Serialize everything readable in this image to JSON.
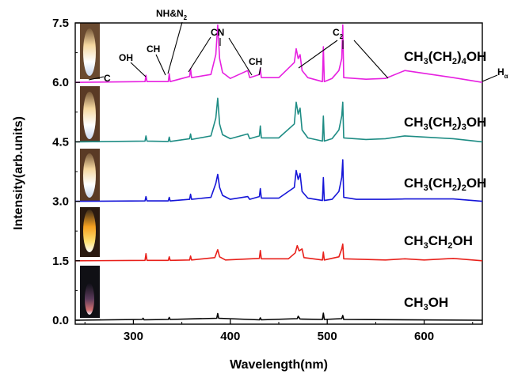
{
  "chart_data": {
    "type": "line",
    "title": "",
    "xlabel": "Wavelength(nm)",
    "ylabel": "Intensity(arb.units)",
    "xlim": [
      240,
      660
    ],
    "ylim": [
      -0.1,
      7.5
    ],
    "x_ticks": [
      "300",
      "400",
      "500",
      "600"
    ],
    "y_ticks": [
      "0.0",
      "1.5",
      "3.0",
      "4.5",
      "6.0",
      "7.5"
    ],
    "series": [
      {
        "name": "CH3OH",
        "label_parts": [
          [
            "CH",
            ""
          ],
          [
            "3",
            "sub"
          ],
          [
            "OH",
            ""
          ]
        ],
        "color": "#000000",
        "offset": 0.0,
        "points": [
          [
            240,
            0.0
          ],
          [
            309,
            0.02
          ],
          [
            310,
            0.05
          ],
          [
            311,
            0.01
          ],
          [
            336,
            0.02
          ],
          [
            337,
            0.07
          ],
          [
            338,
            0.02
          ],
          [
            386,
            0.05
          ],
          [
            387,
            0.17
          ],
          [
            388,
            0.05
          ],
          [
            430,
            0.01
          ],
          [
            431,
            0.06
          ],
          [
            432,
            0.01
          ],
          [
            469,
            0.04
          ],
          [
            470,
            0.1
          ],
          [
            472,
            0.03
          ],
          [
            495,
            0.02
          ],
          [
            496,
            0.18
          ],
          [
            497,
            0.02
          ],
          [
            515,
            0.04
          ],
          [
            516,
            0.12
          ],
          [
            517,
            0.02
          ],
          [
            660,
            0.0
          ]
        ]
      },
      {
        "name": "CH3CH2OH",
        "label_parts": [
          [
            "CH",
            ""
          ],
          [
            "3",
            "sub"
          ],
          [
            "CH",
            ""
          ],
          [
            "2",
            "sub"
          ],
          [
            "OH",
            ""
          ]
        ],
        "color": "#e8201a",
        "offset": 1.5,
        "points": [
          [
            240,
            0.0
          ],
          [
            312,
            0.01
          ],
          [
            313,
            0.18
          ],
          [
            314,
            0.01
          ],
          [
            336,
            0.01
          ],
          [
            337,
            0.1
          ],
          [
            338,
            0.01
          ],
          [
            358,
            0.02
          ],
          [
            359,
            0.12
          ],
          [
            360,
            0.02
          ],
          [
            384,
            0.08
          ],
          [
            387,
            0.28
          ],
          [
            389,
            0.1
          ],
          [
            395,
            0.02
          ],
          [
            430,
            0.06
          ],
          [
            431,
            0.26
          ],
          [
            432,
            0.05
          ],
          [
            460,
            0.05
          ],
          [
            467,
            0.2
          ],
          [
            469,
            0.38
          ],
          [
            471,
            0.25
          ],
          [
            474,
            0.3
          ],
          [
            476,
            0.08
          ],
          [
            495,
            0.02
          ],
          [
            496,
            0.22
          ],
          [
            497,
            0.02
          ],
          [
            512,
            0.1
          ],
          [
            515,
            0.3
          ],
          [
            516,
            0.42
          ],
          [
            517,
            0.05
          ],
          [
            560,
            0.02
          ],
          [
            580,
            0.05
          ],
          [
            600,
            0.02
          ],
          [
            630,
            0.06
          ],
          [
            660,
            0.0
          ]
        ]
      },
      {
        "name": "CH3(CH2)2OH",
        "label_parts": [
          [
            "CH",
            ""
          ],
          [
            "3",
            "sub"
          ],
          [
            "(CH",
            ""
          ],
          [
            "2",
            "sub"
          ],
          [
            ")",
            ""
          ],
          [
            "2",
            "sub"
          ],
          [
            "OH",
            ""
          ]
        ],
        "color": "#1515d8",
        "offset": 3.0,
        "points": [
          [
            240,
            0.0
          ],
          [
            312,
            0.01
          ],
          [
            313,
            0.12
          ],
          [
            314,
            0.01
          ],
          [
            336,
            0.01
          ],
          [
            337,
            0.1
          ],
          [
            338,
            0.01
          ],
          [
            358,
            0.05
          ],
          [
            359,
            0.18
          ],
          [
            360,
            0.05
          ],
          [
            380,
            0.1
          ],
          [
            385,
            0.45
          ],
          [
            387,
            0.68
          ],
          [
            389,
            0.35
          ],
          [
            392,
            0.15
          ],
          [
            400,
            0.05
          ],
          [
            418,
            0.12
          ],
          [
            420,
            0.05
          ],
          [
            430,
            0.12
          ],
          [
            431,
            0.32
          ],
          [
            432,
            0.08
          ],
          [
            450,
            0.08
          ],
          [
            466,
            0.35
          ],
          [
            468,
            0.78
          ],
          [
            470,
            0.55
          ],
          [
            472,
            0.7
          ],
          [
            474,
            0.25
          ],
          [
            480,
            0.08
          ],
          [
            495,
            0.02
          ],
          [
            496,
            0.6
          ],
          [
            497,
            0.02
          ],
          [
            505,
            0.05
          ],
          [
            512,
            0.25
          ],
          [
            515,
            0.6
          ],
          [
            516,
            1.05
          ],
          [
            517,
            0.1
          ],
          [
            530,
            0.05
          ],
          [
            560,
            0.05
          ],
          [
            580,
            0.06
          ],
          [
            630,
            0.06
          ],
          [
            660,
            0.0
          ]
        ]
      },
      {
        "name": "CH3(CH2)3OH",
        "label_parts": [
          [
            "CH",
            ""
          ],
          [
            "3",
            "sub"
          ],
          [
            "(CH",
            ""
          ],
          [
            "2",
            "sub"
          ],
          [
            ")",
            ""
          ],
          [
            "3",
            "sub"
          ],
          [
            "OH",
            ""
          ]
        ],
        "color": "#1e8c84",
        "offset": 4.5,
        "points": [
          [
            240,
            0.0
          ],
          [
            312,
            0.02
          ],
          [
            313,
            0.15
          ],
          [
            314,
            0.02
          ],
          [
            336,
            0.01
          ],
          [
            337,
            0.12
          ],
          [
            338,
            0.01
          ],
          [
            358,
            0.08
          ],
          [
            359,
            0.2
          ],
          [
            360,
            0.06
          ],
          [
            380,
            0.15
          ],
          [
            385,
            0.6
          ],
          [
            387,
            1.1
          ],
          [
            389,
            0.45
          ],
          [
            392,
            0.18
          ],
          [
            400,
            0.08
          ],
          [
            418,
            0.2
          ],
          [
            420,
            0.08
          ],
          [
            430,
            0.15
          ],
          [
            431,
            0.4
          ],
          [
            432,
            0.1
          ],
          [
            450,
            0.1
          ],
          [
            466,
            0.45
          ],
          [
            468,
            1.0
          ],
          [
            470,
            0.7
          ],
          [
            472,
            0.85
          ],
          [
            474,
            0.3
          ],
          [
            480,
            0.1
          ],
          [
            495,
            0.02
          ],
          [
            496,
            0.65
          ],
          [
            497,
            0.02
          ],
          [
            505,
            0.08
          ],
          [
            512,
            0.3
          ],
          [
            515,
            0.65
          ],
          [
            516,
            1.0
          ],
          [
            517,
            0.1
          ],
          [
            540,
            0.06
          ],
          [
            560,
            0.08
          ],
          [
            580,
            0.15
          ],
          [
            630,
            0.08
          ],
          [
            660,
            0.0
          ]
        ]
      },
      {
        "name": "CH3(CH2)4OH",
        "label_parts": [
          [
            "CH",
            ""
          ],
          [
            "3",
            "sub"
          ],
          [
            "(CH",
            ""
          ],
          [
            "2",
            "sub"
          ],
          [
            ")",
            ""
          ],
          [
            "4",
            "sub"
          ],
          [
            "OH",
            ""
          ]
        ],
        "color": "#e620e0",
        "offset": 6.0,
        "points": [
          [
            240,
            0.0
          ],
          [
            312,
            0.02
          ],
          [
            313,
            0.18
          ],
          [
            314,
            0.02
          ],
          [
            336,
            0.02
          ],
          [
            337,
            0.22
          ],
          [
            338,
            0.02
          ],
          [
            358,
            0.15
          ],
          [
            359,
            0.35
          ],
          [
            360,
            0.12
          ],
          [
            380,
            0.2
          ],
          [
            385,
            0.7
          ],
          [
            387,
            1.45
          ],
          [
            389,
            0.6
          ],
          [
            392,
            0.25
          ],
          [
            400,
            0.1
          ],
          [
            418,
            0.3
          ],
          [
            420,
            0.12
          ],
          [
            430,
            0.2
          ],
          [
            431,
            0.35
          ],
          [
            432,
            0.12
          ],
          [
            450,
            0.12
          ],
          [
            466,
            0.5
          ],
          [
            468,
            0.85
          ],
          [
            470,
            0.6
          ],
          [
            472,
            0.7
          ],
          [
            474,
            0.3
          ],
          [
            480,
            0.12
          ],
          [
            495,
            0.02
          ],
          [
            496,
            0.9
          ],
          [
            497,
            0.02
          ],
          [
            505,
            0.1
          ],
          [
            512,
            0.3
          ],
          [
            515,
            0.6
          ],
          [
            516,
            1.45
          ],
          [
            517,
            0.12
          ],
          [
            540,
            0.08
          ],
          [
            560,
            0.1
          ],
          [
            580,
            0.3
          ],
          [
            630,
            0.12
          ],
          [
            660,
            0.0
          ]
        ]
      }
    ],
    "annotations": [
      {
        "name": "C",
        "parts": [
          [
            "C",
            ""
          ]
        ]
      },
      {
        "name": "OH",
        "parts": [
          [
            "OH",
            ""
          ]
        ]
      },
      {
        "name": "CH-1",
        "parts": [
          [
            "CH",
            ""
          ]
        ]
      },
      {
        "name": "NH-N2",
        "parts": [
          [
            "NH&N",
            ""
          ],
          [
            "2",
            "sub"
          ]
        ]
      },
      {
        "name": "CN",
        "parts": [
          [
            "CN",
            ""
          ]
        ]
      },
      {
        "name": "CH-2",
        "parts": [
          [
            "CH",
            ""
          ]
        ]
      },
      {
        "name": "C2",
        "parts": [
          [
            "C",
            ""
          ],
          [
            "2",
            "sub"
          ]
        ]
      },
      {
        "name": "H-alpha",
        "parts": [
          [
            "H",
            ""
          ],
          [
            "α",
            "sub"
          ]
        ]
      }
    ]
  }
}
